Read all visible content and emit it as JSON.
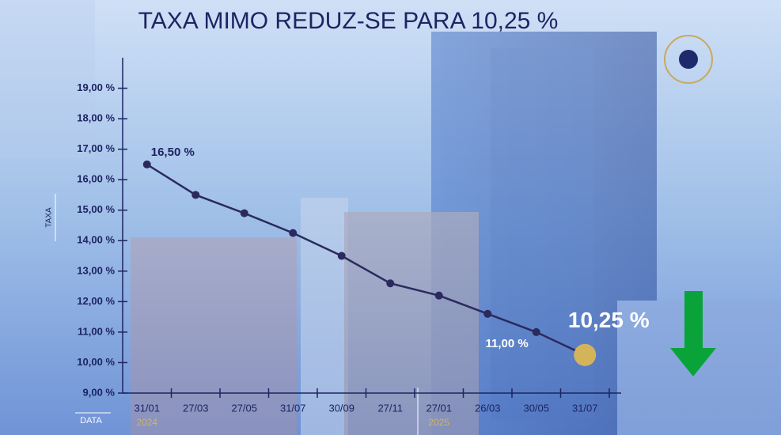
{
  "chart_data": {
    "type": "line",
    "title": "TAXA MIMO REDUZ-SE PARA 10,25 %",
    "y_label": "TAXA",
    "x_label": "DATA",
    "categories": [
      "31/01",
      "27/03",
      "27/05",
      "31/07",
      "30/09",
      "27/11",
      "27/01",
      "26/03",
      "30/05",
      "31/07"
    ],
    "year_labels": [
      "2024",
      null,
      null,
      null,
      null,
      null,
      "2025",
      null,
      null,
      null
    ],
    "series": [
      {
        "color": "#2b2a5e",
        "values": [
          16.5,
          15.5,
          14.9,
          14.25,
          13.5,
          12.6,
          12.2,
          11.6,
          11.0,
          10.25
        ],
        "value_labels": [
          "16,50 %",
          null,
          null,
          null,
          null,
          null,
          null,
          null,
          "11,00 %",
          "10,25 %"
        ]
      }
    ],
    "highlight_color": "#d4b45a",
    "ylim": [
      9,
      20
    ],
    "yticks": [
      {
        "value": 9,
        "label": "9,00 %"
      },
      {
        "value": 10,
        "label": "10,00 %"
      },
      {
        "value": 11,
        "label": "11,00 %"
      },
      {
        "value": 12,
        "label": "12,00 %"
      },
      {
        "value": 13,
        "label": "13,00 %"
      },
      {
        "value": 14,
        "label": "14,00 %"
      },
      {
        "value": 15,
        "label": "15,00 %"
      },
      {
        "value": 16,
        "label": "16,00 %"
      },
      {
        "value": 17,
        "label": "17,00 %"
      },
      {
        "value": 18,
        "label": "18,00 %"
      },
      {
        "value": 19,
        "label": "19,00 %"
      }
    ]
  }
}
